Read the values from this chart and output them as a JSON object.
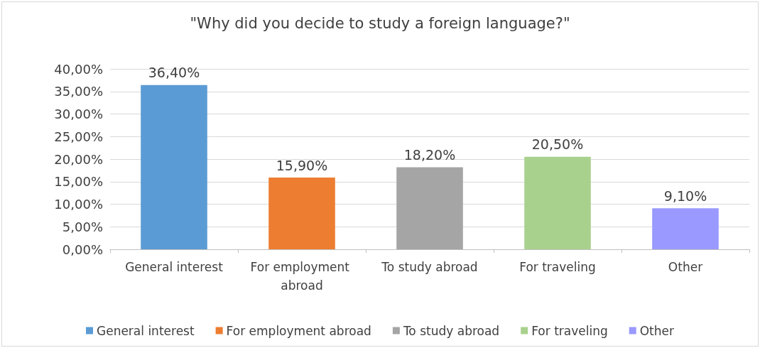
{
  "chart_data": {
    "type": "bar",
    "title": "\"Why did you decide to study a foreign language?\"",
    "categories": [
      "General interest",
      "For employment abroad",
      "To study abroad",
      "For traveling",
      "Other"
    ],
    "stacked": true,
    "series": [
      {
        "name": "General interest",
        "color": "#5b9bd5",
        "values": [
          36.4,
          null,
          null,
          null,
          null
        ],
        "value_labels": [
          "36,40%",
          null,
          null,
          null,
          null
        ]
      },
      {
        "name": "For employment abroad",
        "color": "#ed7d31",
        "values": [
          null,
          15.9,
          null,
          null,
          null
        ],
        "value_labels": [
          null,
          "15,90%",
          null,
          null,
          null
        ]
      },
      {
        "name": "To study abroad",
        "color": "#a5a5a5",
        "values": [
          null,
          null,
          18.2,
          null,
          null
        ],
        "value_labels": [
          null,
          null,
          "18,20%",
          null,
          null
        ]
      },
      {
        "name": "For traveling",
        "color": "#a9d18e",
        "values": [
          null,
          null,
          null,
          20.5,
          null
        ],
        "value_labels": [
          null,
          null,
          null,
          "20,50%",
          null
        ]
      },
      {
        "name": "Other",
        "color": "#9999ff",
        "values": [
          null,
          null,
          null,
          null,
          9.1
        ],
        "value_labels": [
          null,
          null,
          null,
          null,
          "9,10%"
        ]
      }
    ],
    "ylim": [
      0,
      40
    ],
    "yticks": [
      {
        "value": 0,
        "label": "0,00%"
      },
      {
        "value": 5,
        "label": "5,00%"
      },
      {
        "value": 10,
        "label": "10,00%"
      },
      {
        "value": 15,
        "label": "15,00%"
      },
      {
        "value": 20,
        "label": "20,00%"
      },
      {
        "value": 25,
        "label": "25,00%"
      },
      {
        "value": 30,
        "label": "30,00%"
      },
      {
        "value": 35,
        "label": "35,00%"
      },
      {
        "value": 40,
        "label": "40,00%"
      }
    ],
    "grid": "y",
    "legend": "bottom"
  }
}
